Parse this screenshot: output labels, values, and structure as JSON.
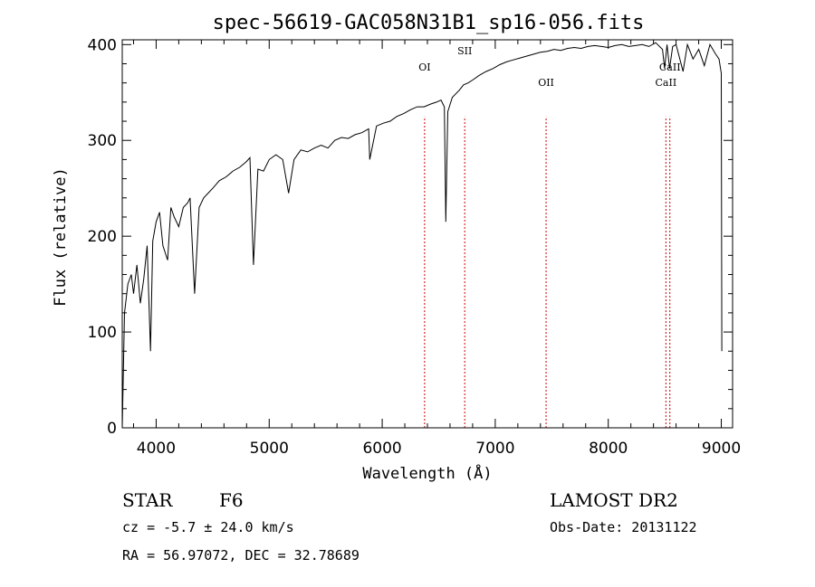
{
  "chart_data": {
    "type": "line",
    "title": "spec-56619-GAC058N31B1_sp16-056.fits",
    "xlabel": "Wavelength (Å)",
    "ylabel": "Flux (relative)",
    "xlim": [
      3700,
      9100
    ],
    "ylim": [
      0,
      405
    ],
    "xticks": [
      4000,
      5000,
      6000,
      7000,
      8000,
      9000
    ],
    "yticks": [
      0,
      100,
      200,
      300,
      400
    ],
    "series": [
      {
        "x": [
          3700,
          3720,
          3750,
          3780,
          3800,
          3830,
          3860,
          3890,
          3920,
          3950,
          3970,
          4000,
          4030,
          4060,
          4101,
          4130,
          4160,
          4200,
          4240,
          4280,
          4300,
          4340,
          4380,
          4420,
          4460,
          4500,
          4560,
          4620,
          4680,
          4740,
          4800,
          4830,
          4861,
          4900,
          4950,
          5000,
          5060,
          5120,
          5172,
          5220,
          5280,
          5340,
          5400,
          5460,
          5520,
          5580,
          5640,
          5700,
          5760,
          5820,
          5880,
          5890,
          5950,
          6010,
          6070,
          6130,
          6190,
          6250,
          6310,
          6370,
          6430,
          6480,
          6520,
          6550,
          6563,
          6580,
          6620,
          6680,
          6720,
          6760,
          6800,
          6860,
          6920,
          6980,
          7040,
          7100,
          7160,
          7220,
          7280,
          7340,
          7400,
          7460,
          7520,
          7580,
          7640,
          7700,
          7760,
          7820,
          7880,
          7940,
          8000,
          8060,
          8120,
          8180,
          8240,
          8300,
          8360,
          8420,
          8480,
          8498,
          8520,
          8542,
          8570,
          8600,
          8662,
          8700,
          8750,
          8800,
          8850,
          8900,
          8950,
          8980,
          9000,
          9005
        ],
        "y": [
          0,
          120,
          150,
          160,
          140,
          170,
          130,
          155,
          190,
          80,
          195,
          215,
          225,
          190,
          175,
          230,
          220,
          210,
          230,
          235,
          240,
          140,
          230,
          240,
          245,
          250,
          258,
          262,
          268,
          272,
          278,
          282,
          170,
          270,
          268,
          280,
          285,
          280,
          245,
          280,
          290,
          288,
          292,
          295,
          292,
          300,
          303,
          302,
          306,
          308,
          312,
          280,
          315,
          318,
          320,
          325,
          328,
          332,
          335,
          335,
          338,
          340,
          342,
          335,
          215,
          330,
          345,
          352,
          358,
          360,
          363,
          368,
          372,
          375,
          379,
          382,
          384,
          386,
          388,
          390,
          392,
          393,
          395,
          394,
          396,
          397,
          396,
          398,
          399,
          398,
          397,
          399,
          400,
          398,
          399,
          400,
          398,
          402,
          395,
          375,
          400,
          375,
          398,
          400,
          372,
          400,
          385,
          395,
          378,
          400,
          390,
          385,
          370,
          80
        ]
      }
    ],
    "lines": [
      {
        "label": "OI",
        "x": 6375
      },
      {
        "label": "SII",
        "x": 6730
      },
      {
        "label": "OII",
        "x": 7450
      },
      {
        "label": "CaII",
        "x": 8510
      },
      {
        "label": "CaII",
        "x": 8545
      }
    ],
    "line_color": "#cc0000",
    "spectrum_color": "#000000"
  },
  "info": {
    "object_class": "STAR",
    "subclass": "F6",
    "survey": "LAMOST DR2",
    "redshift": "cz = -5.7 ± 24.0 km/s",
    "obs_date": "Obs-Date: 20131122",
    "coords": "RA =  56.97072, DEC =  32.78689"
  }
}
